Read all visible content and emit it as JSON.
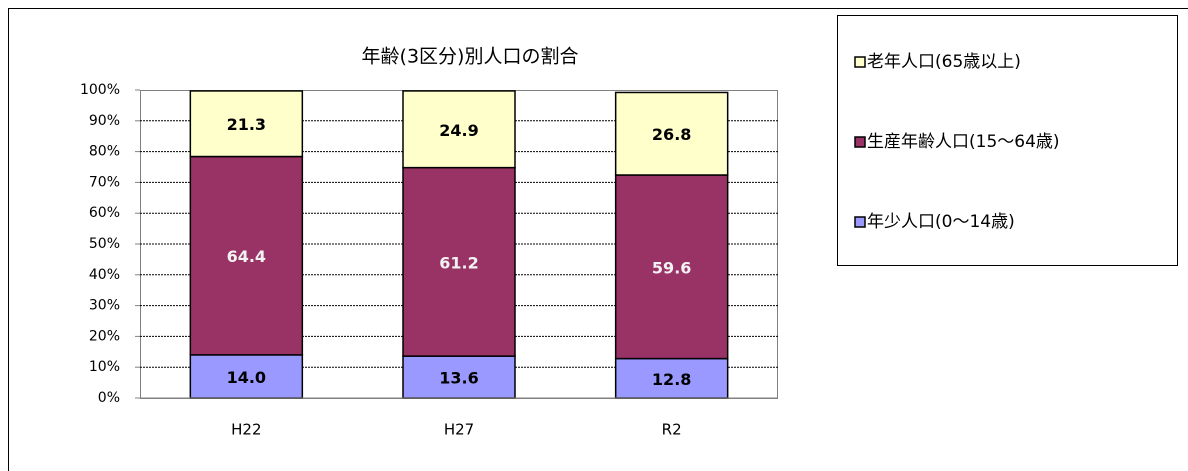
{
  "chart_data": {
    "type": "stacked_bar",
    "title": "年齢(3区分)別人口の割合",
    "categories": [
      "H22",
      "H27",
      "R2"
    ],
    "series": [
      {
        "name": "年少人口(0～14歳)",
        "color": "#9999ff",
        "values": [
          14.0,
          13.6,
          12.8
        ],
        "value_labels": [
          "14.0",
          "13.6",
          "12.8"
        ]
      },
      {
        "name": "生産年齢人口(15～64歳)",
        "color": "#993366",
        "values": [
          64.4,
          61.2,
          59.6
        ],
        "value_labels": [
          "64.4",
          "61.2",
          "59.6"
        ]
      },
      {
        "name": "老年人口(65歳以上)",
        "color": "#ffffcc",
        "values": [
          21.3,
          24.9,
          26.8
        ],
        "value_labels": [
          "21.3",
          "24.9",
          "26.8"
        ]
      }
    ],
    "ylim": [
      0,
      100
    ],
    "yticks": [
      {
        "value": 0,
        "label": "0%"
      },
      {
        "value": 10,
        "label": "10%"
      },
      {
        "value": 20,
        "label": "20%"
      },
      {
        "value": 30,
        "label": "30%"
      },
      {
        "value": 40,
        "label": "40%"
      },
      {
        "value": 50,
        "label": "50%"
      },
      {
        "value": 60,
        "label": "60%"
      },
      {
        "value": 70,
        "label": "70%"
      },
      {
        "value": 80,
        "label": "80%"
      },
      {
        "value": 90,
        "label": "90%"
      },
      {
        "value": 100,
        "label": "100%"
      }
    ],
    "grid": true
  }
}
